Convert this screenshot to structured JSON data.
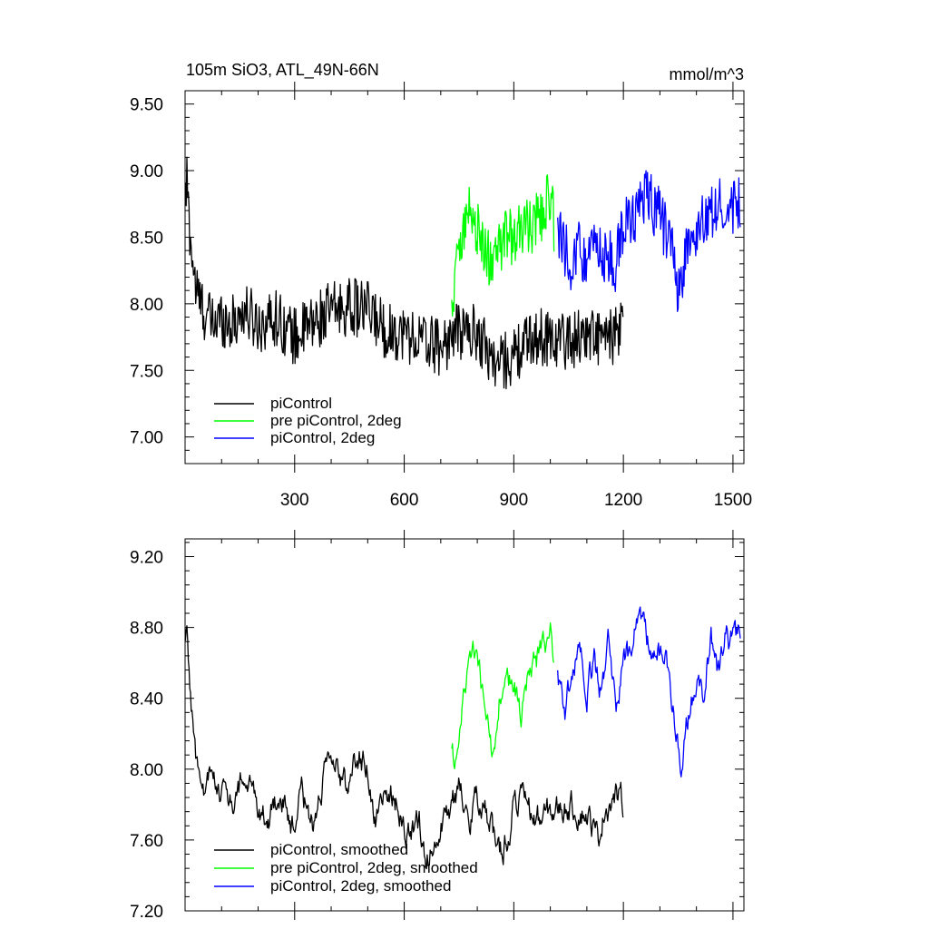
{
  "chart_data": [
    {
      "type": "line",
      "title": "105m SiO3, ATL_49N-66N",
      "units": "mmol/m^3",
      "xlim": [
        0,
        1530
      ],
      "ylim": [
        6.8,
        9.6
      ],
      "xticks": [
        300,
        600,
        900,
        1200,
        1500
      ],
      "xtick_labels": [
        "300",
        "600",
        "900",
        "1200",
        "1500"
      ],
      "yticks": [
        7.0,
        7.5,
        8.0,
        8.5,
        9.0,
        9.5
      ],
      "ytick_labels": [
        "7.00",
        "7.50",
        "8.00",
        "8.50",
        "9.00",
        "9.50"
      ],
      "grid": false,
      "legend_position": "bottom-left",
      "series": [
        {
          "name": "piControl",
          "color": "#000000",
          "x": [
            1,
            5,
            10,
            20,
            30,
            50,
            75,
            100,
            130,
            160,
            200,
            250,
            300,
            350,
            400,
            450,
            500,
            550,
            600,
            650,
            700,
            750,
            800,
            850,
            900,
            950,
            1000,
            1050,
            1100,
            1150,
            1200
          ],
          "values": [
            8.75,
            8.95,
            8.65,
            8.35,
            8.1,
            7.95,
            7.85,
            7.9,
            7.85,
            7.95,
            7.85,
            7.9,
            7.75,
            7.85,
            7.95,
            7.98,
            7.95,
            7.8,
            7.78,
            7.72,
            7.68,
            7.8,
            7.78,
            7.55,
            7.6,
            7.75,
            7.75,
            7.72,
            7.78,
            7.72,
            7.8
          ]
        },
        {
          "name": "pre piControl, 2deg",
          "color": "#00ff00",
          "x": [
            730,
            750,
            780,
            800,
            830,
            850,
            880,
            900,
            930,
            950,
            980,
            1000,
            1010
          ],
          "values": [
            7.9,
            8.5,
            8.7,
            8.55,
            8.35,
            8.3,
            8.55,
            8.45,
            8.6,
            8.55,
            8.7,
            8.8,
            8.6
          ]
        },
        {
          "name": "piControl, 2deg",
          "color": "#0000ff",
          "x": [
            1020,
            1040,
            1060,
            1080,
            1100,
            1130,
            1150,
            1180,
            1200,
            1220,
            1250,
            1280,
            1300,
            1330,
            1350,
            1380,
            1400,
            1430,
            1450,
            1480,
            1500,
            1520
          ],
          "values": [
            8.55,
            8.4,
            8.3,
            8.45,
            8.3,
            8.45,
            8.35,
            8.3,
            8.6,
            8.6,
            8.8,
            8.75,
            8.65,
            8.45,
            8.1,
            8.45,
            8.55,
            8.65,
            8.75,
            8.75,
            8.7,
            8.75
          ]
        }
      ]
    },
    {
      "type": "line",
      "xlim": [
        0,
        1530
      ],
      "ylim": [
        7.2,
        9.3
      ],
      "xticks": [
        300,
        600,
        900,
        1200,
        1500
      ],
      "yticks": [
        7.2,
        7.6,
        8.0,
        8.4,
        8.8,
        9.2
      ],
      "ytick_labels": [
        "7.20",
        "7.60",
        "8.00",
        "8.40",
        "8.80",
        "9.20"
      ],
      "grid": false,
      "legend_position": "bottom-left",
      "series": [
        {
          "name": "piControl, smoothed",
          "color": "#000000",
          "x": [
            1,
            5,
            10,
            20,
            30,
            50,
            70,
            100,
            130,
            160,
            200,
            230,
            260,
            290,
            320,
            350,
            380,
            410,
            440,
            470,
            500,
            520,
            550,
            580,
            610,
            640,
            660,
            690,
            720,
            750,
            780,
            810,
            840,
            860,
            880,
            900,
            930,
            960,
            1000,
            1050,
            1100,
            1130,
            1150,
            1180,
            1200
          ],
          "values": [
            8.7,
            8.78,
            8.6,
            8.3,
            8.05,
            7.85,
            7.95,
            7.9,
            7.78,
            7.95,
            7.8,
            7.72,
            7.9,
            7.62,
            7.85,
            7.7,
            7.95,
            8.02,
            7.9,
            8.1,
            8.0,
            7.72,
            7.9,
            7.8,
            7.62,
            7.72,
            7.5,
            7.65,
            7.72,
            7.9,
            7.75,
            7.85,
            7.65,
            7.52,
            7.6,
            7.8,
            7.82,
            7.7,
            7.75,
            7.8,
            7.75,
            7.6,
            7.8,
            7.85,
            7.8
          ]
        },
        {
          "name": "pre piControl, 2deg, smoothed",
          "color": "#00ff00",
          "x": [
            730,
            745,
            760,
            780,
            800,
            820,
            840,
            860,
            880,
            900,
            920,
            940,
            960,
            980,
            1000,
            1010
          ],
          "values": [
            8.1,
            8.0,
            8.35,
            8.65,
            8.7,
            8.35,
            8.1,
            8.4,
            8.45,
            8.5,
            8.25,
            8.55,
            8.6,
            8.7,
            8.75,
            8.55
          ]
        },
        {
          "name": "piControl, 2deg, smoothed",
          "color": "#0000ff",
          "x": [
            1020,
            1040,
            1060,
            1080,
            1100,
            1120,
            1140,
            1160,
            1180,
            1200,
            1220,
            1240,
            1260,
            1280,
            1300,
            1320,
            1340,
            1360,
            1380,
            1400,
            1420,
            1440,
            1460,
            1480,
            1500,
            1520
          ],
          "values": [
            8.55,
            8.35,
            8.5,
            8.7,
            8.45,
            8.6,
            8.4,
            8.75,
            8.3,
            8.6,
            8.65,
            8.9,
            8.8,
            8.6,
            8.65,
            8.55,
            8.3,
            8.0,
            8.35,
            8.5,
            8.45,
            8.75,
            8.55,
            8.75,
            8.7,
            8.8
          ]
        }
      ]
    }
  ]
}
